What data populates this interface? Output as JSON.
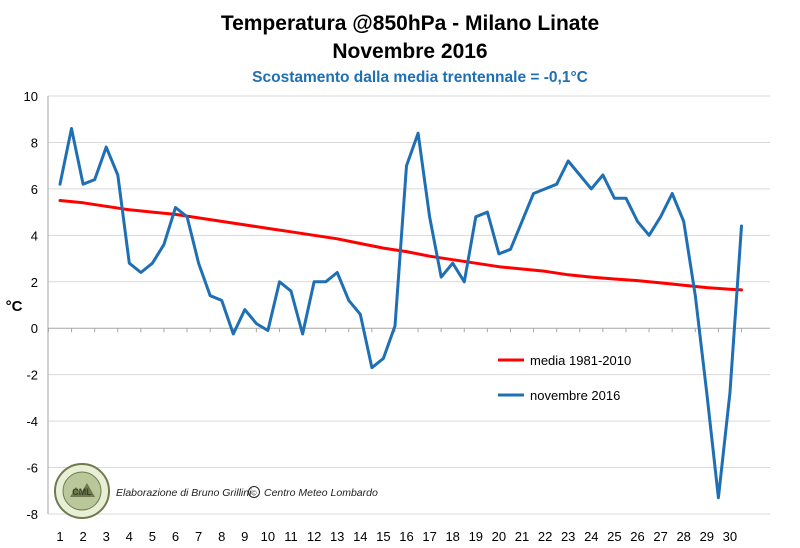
{
  "chart_data": {
    "type": "line",
    "title": "Temperatura @850hPa - Milano Linate",
    "subtitle": "Novembre 2016",
    "subtitle2": "Scostamento dalla media trentennale = -0,1°C",
    "ylabel": "°C",
    "xlabel": "",
    "ylim": [
      -8,
      10
    ],
    "yticks": [
      -8,
      -6,
      -4,
      -2,
      0,
      2,
      4,
      6,
      8,
      10
    ],
    "xlim": [
      1,
      31
    ],
    "xticks": [
      1,
      2,
      3,
      4,
      5,
      6,
      7,
      8,
      9,
      10,
      11,
      12,
      13,
      14,
      15,
      16,
      17,
      18,
      19,
      20,
      21,
      22,
      23,
      24,
      25,
      26,
      27,
      28,
      29,
      30
    ],
    "grid": "horizontal",
    "legend_position": "center-right",
    "series": [
      {
        "name": "media 1981-2010",
        "color": "#ff0000",
        "x": [
          1,
          2,
          3,
          4,
          5,
          6,
          7,
          8,
          9,
          10,
          11,
          12,
          13,
          14,
          15,
          16,
          17,
          18,
          19,
          20,
          21,
          22,
          23,
          24,
          25,
          26,
          27,
          28,
          29,
          30,
          30.5
        ],
        "y": [
          5.5,
          5.4,
          5.25,
          5.1,
          5.0,
          4.9,
          4.75,
          4.6,
          4.45,
          4.3,
          4.15,
          4.0,
          3.85,
          3.65,
          3.45,
          3.3,
          3.1,
          2.95,
          2.8,
          2.65,
          2.55,
          2.45,
          2.3,
          2.2,
          2.12,
          2.05,
          1.95,
          1.85,
          1.75,
          1.68,
          1.65
        ]
      },
      {
        "name": "novembre 2016",
        "color": "#1f6fb5",
        "x": [
          1,
          1.5,
          2,
          2.5,
          3,
          3.5,
          4,
          4.5,
          5,
          5.5,
          6,
          6.5,
          7,
          7.5,
          8,
          8.5,
          9,
          9.5,
          10,
          10.5,
          11,
          11.5,
          12,
          12.5,
          13,
          13.5,
          14,
          14.5,
          15,
          15.5,
          16,
          16.5,
          17,
          17.5,
          18,
          18.5,
          19,
          19.5,
          20,
          20.5,
          21,
          21.5,
          22,
          22.5,
          23,
          23.5,
          24,
          24.5,
          25,
          25.5,
          26,
          26.5,
          27,
          27.5,
          28,
          28.5,
          29,
          29.5,
          30,
          30.5
        ],
        "y": [
          6.2,
          8.6,
          6.2,
          6.4,
          7.8,
          6.6,
          2.8,
          2.4,
          2.8,
          3.6,
          5.2,
          4.8,
          2.8,
          1.4,
          1.2,
          -0.25,
          0.8,
          0.2,
          -0.1,
          2.0,
          1.6,
          -0.25,
          2.0,
          2.0,
          2.4,
          1.2,
          0.6,
          -1.7,
          -1.3,
          0.1,
          7.0,
          8.4,
          4.8,
          2.2,
          2.8,
          2.0,
          4.8,
          5.0,
          3.2,
          3.4,
          4.6,
          5.8,
          6.0,
          6.2,
          7.2,
          6.6,
          6.0,
          6.6,
          5.6,
          5.6,
          4.6,
          4.0,
          4.8,
          5.8,
          4.6,
          1.4,
          -2.8,
          -7.3,
          -2.8,
          4.4
        ]
      }
    ],
    "annotations": [
      "Elaborazione di Bruno Grillini",
      "©",
      "Centro Meteo Lombardo"
    ],
    "logo_text": "METEO LOMBARDO CML"
  }
}
